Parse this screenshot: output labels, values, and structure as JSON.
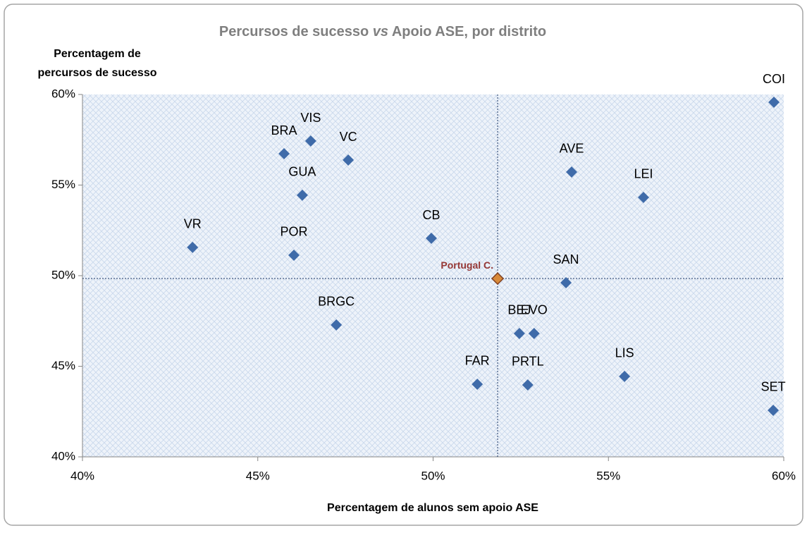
{
  "chart_data": {
    "type": "scatter",
    "title": [
      "Percursos de sucesso ",
      "vs",
      " Apoio ASE, por distrito"
    ],
    "xlabel": "Percentagem de alunos sem apoio ASE",
    "ylabel": [
      "Percentagem de",
      "percursos de sucesso"
    ],
    "labels": [
      "COI",
      "BRA",
      "VIS",
      "VC",
      "AVE",
      "GUA",
      "LEI",
      "VR",
      "POR",
      "CB",
      "Portugal C.",
      "SAN",
      "BRGC",
      "BEJ",
      "EVO",
      "FAR",
      "PRTL",
      "LIS",
      "SET"
    ],
    "x": [
      59.72,
      45.75,
      46.51,
      47.58,
      53.95,
      46.27,
      56.0,
      43.14,
      46.03,
      49.95,
      51.84,
      53.79,
      47.24,
      52.46,
      52.88,
      51.26,
      52.7,
      55.46,
      59.7
    ],
    "y": [
      59.57,
      56.73,
      57.43,
      56.38,
      55.72,
      54.44,
      54.32,
      51.56,
      51.13,
      52.06,
      49.84,
      49.61,
      47.28,
      46.81,
      46.81,
      44.01,
      43.97,
      44.44,
      42.57
    ],
    "colors": [
      "#3f6ba9",
      "#3f6ba9",
      "#3f6ba9",
      "#3f6ba9",
      "#3f6ba9",
      "#3f6ba9",
      "#3f6ba9",
      "#3f6ba9",
      "#3f6ba9",
      "#3f6ba9",
      "#d88a3a",
      "#3f6ba9",
      "#3f6ba9",
      "#3f6ba9",
      "#3f6ba9",
      "#3f6ba9",
      "#3f6ba9",
      "#3f6ba9",
      "#3f6ba9"
    ],
    "label_colors": [
      "#000000",
      "#000000",
      "#000000",
      "#000000",
      "#000000",
      "#000000",
      "#000000",
      "#000000",
      "#000000",
      "#000000",
      "#953735",
      "#000000",
      "#000000",
      "#000000",
      "#000000",
      "#000000",
      "#000000",
      "#000000",
      "#000000"
    ],
    "xlim": [
      40,
      60
    ],
    "xticks": [
      {
        "value": 40,
        "label": "40%"
      },
      {
        "value": 45,
        "label": "45%"
      },
      {
        "value": 50,
        "label": "50%"
      },
      {
        "value": 55,
        "label": "55%"
      },
      {
        "value": 60,
        "label": "60%"
      }
    ],
    "ylim": [
      40,
      60
    ],
    "yticks": [
      {
        "value": 40,
        "label": "40%"
      },
      {
        "value": 45,
        "label": "45%"
      },
      {
        "value": 50,
        "label": "50%"
      },
      {
        "value": 55,
        "label": "55%"
      },
      {
        "value": 60,
        "label": "60%"
      }
    ]
  }
}
